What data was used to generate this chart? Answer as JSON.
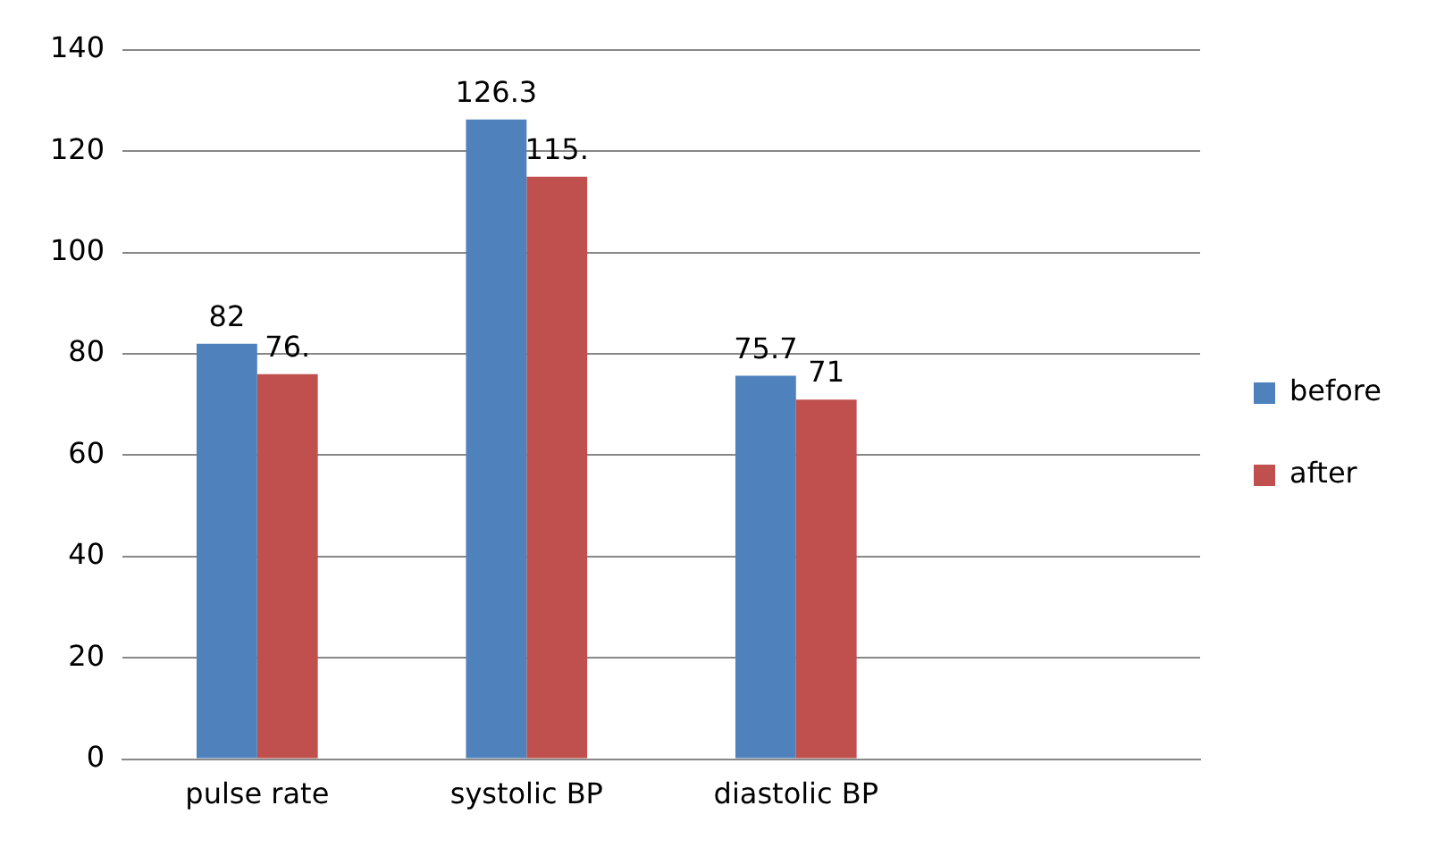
{
  "chart_data": {
    "type": "bar",
    "categories": [
      "pulse rate",
      "systolic BP",
      "diastolic BP",
      null
    ],
    "series": [
      {
        "name": "before",
        "color": "#4f81bd",
        "values": [
          82,
          126.3,
          75.7,
          null
        ],
        "value_labels": [
          "82",
          "126.3",
          "75.7",
          null
        ]
      },
      {
        "name": "after",
        "color": "#c0504d",
        "values": [
          76,
          115,
          71,
          null
        ],
        "value_labels": [
          "76.",
          "115.",
          "71",
          null
        ]
      }
    ],
    "ylim": [
      0,
      140
    ],
    "yticks": [
      0,
      20,
      40,
      60,
      80,
      100,
      120,
      140
    ],
    "grid": "y",
    "legend": "right"
  }
}
